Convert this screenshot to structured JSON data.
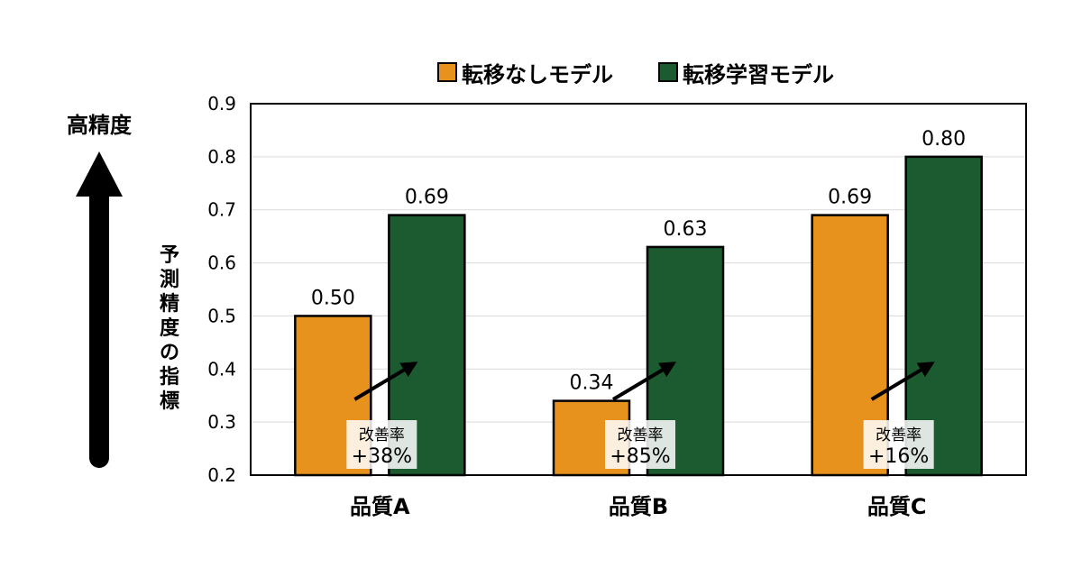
{
  "chart_data": {
    "type": "bar",
    "categories": [
      "品質A",
      "品質B",
      "品質C"
    ],
    "series": [
      {
        "name": "転移なしモデル",
        "color": "#E8921E",
        "values": [
          0.5,
          0.34,
          0.69
        ]
      },
      {
        "name": "転移学習モデル",
        "color": "#1C5A30",
        "values": [
          0.69,
          0.63,
          0.8
        ]
      }
    ],
    "value_labels": [
      [
        "0.50",
        "0.34",
        "0.69"
      ],
      [
        "0.69",
        "0.63",
        "0.80"
      ]
    ],
    "ylabel": "予測精度の指標",
    "ylim": [
      0.2,
      0.9
    ],
    "yticks": [
      "0.9",
      "0.8",
      "0.7",
      "0.6",
      "0.5",
      "0.4",
      "0.3",
      "0.2"
    ],
    "grid": true,
    "legend_position": "top-center",
    "improvement_title": "改善率",
    "improvements": [
      "+38%",
      "+85%",
      "+16%"
    ],
    "side_label": "高精度",
    "side_arrow": "up-arrow-icon"
  }
}
